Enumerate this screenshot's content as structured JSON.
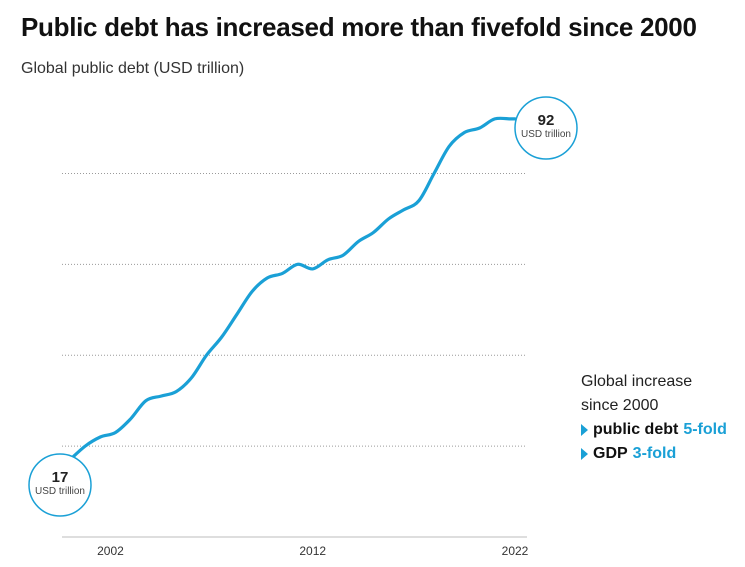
{
  "header": {
    "title": "Public debt has increased more than fivefold since 2000",
    "subtitle": "Global public debt (USD trillion)"
  },
  "annotation": {
    "heading_line1": "Global increase",
    "heading_line2": "since 2000",
    "items": [
      {
        "label": "public debt",
        "value": "5-fold"
      },
      {
        "label": "GDP",
        "value": "3-fold"
      }
    ]
  },
  "callouts": {
    "start": {
      "value": "17",
      "unit": "USD trillion"
    },
    "end": {
      "value": "92",
      "unit": "USD trillion"
    }
  },
  "colors": {
    "accent": "#1aa0d6"
  },
  "chart_data": {
    "type": "line",
    "title": "Public debt has increased more than fivefold since 2000",
    "subtitle": "Global public debt (USD trillion)",
    "xlabel": "",
    "ylabel": "",
    "grid": true,
    "x_ticks": [
      "2002",
      "2012",
      "2022"
    ],
    "xlim": [
      2000,
      2022
    ],
    "ylim": [
      0,
      100
    ],
    "y_gridlines": [
      20,
      40,
      60,
      80
    ],
    "series": [
      {
        "name": "",
        "color": "#1aa0d6",
        "x": [
          2000,
          2000.75,
          2001.5,
          2002.25,
          2003,
          2003.75,
          2004.5,
          2005.25,
          2006,
          2006.75,
          2007.5,
          2008.25,
          2009,
          2009.75,
          2010.5,
          2011.25,
          2012,
          2012.75,
          2013.5,
          2014.25,
          2015,
          2015.75,
          2016.5,
          2017.25,
          2018,
          2018.75,
          2019.5,
          2020.25,
          2021,
          2021.75,
          2022
        ],
        "values": [
          17,
          20,
          22,
          23,
          26,
          30,
          31,
          32,
          35,
          40,
          44,
          49,
          54,
          57,
          58,
          60,
          59,
          61,
          62,
          65,
          67,
          70,
          72,
          74,
          80,
          86,
          89,
          90,
          92,
          92,
          92
        ]
      }
    ]
  }
}
